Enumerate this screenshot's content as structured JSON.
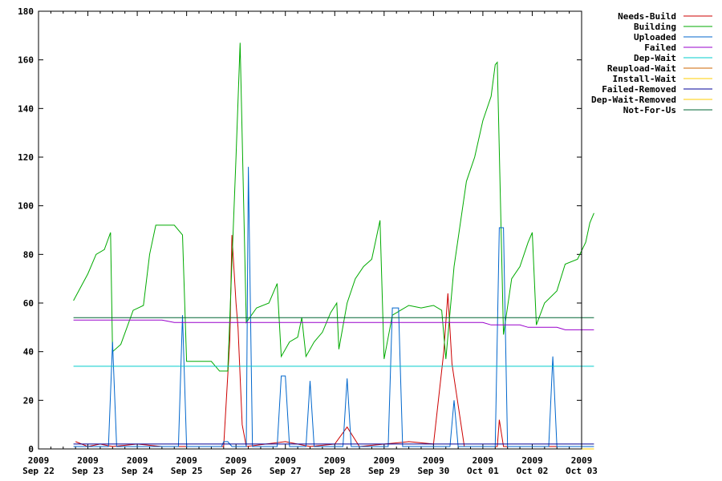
{
  "chart_data": {
    "type": "line",
    "xlim": [
      "2009-09-22",
      "2009-10-03"
    ],
    "ylim": [
      0,
      180
    ],
    "yticks": [
      0,
      20,
      40,
      60,
      80,
      100,
      120,
      140,
      160,
      180
    ],
    "xticks": [
      {
        "date": "2009-09-22",
        "year": "2009",
        "label": "Sep 22"
      },
      {
        "date": "2009-09-23",
        "year": "2009",
        "label": "Sep 23"
      },
      {
        "date": "2009-09-24",
        "year": "2009",
        "label": "Sep 24"
      },
      {
        "date": "2009-09-25",
        "year": "2009",
        "label": "Sep 25"
      },
      {
        "date": "2009-09-26",
        "year": "2009",
        "label": "Sep 26"
      },
      {
        "date": "2009-09-27",
        "year": "2009",
        "label": "Sep 27"
      },
      {
        "date": "2009-09-28",
        "year": "2009",
        "label": "Sep 28"
      },
      {
        "date": "2009-09-29",
        "year": "2009",
        "label": "Sep 29"
      },
      {
        "date": "2009-09-30",
        "year": "2009",
        "label": "Sep 30"
      },
      {
        "date": "2009-10-01",
        "year": "2009",
        "label": "Oct 01"
      },
      {
        "date": "2009-10-02",
        "year": "2009",
        "label": "Oct 02"
      },
      {
        "date": "2009-10-03",
        "year": "2009",
        "label": "Oct 03"
      }
    ],
    "legend_position": "top-right, outside plot",
    "grid": false,
    "series": [
      {
        "name": "Needs-Build",
        "color": "#cc0000",
        "points": [
          [
            "2009-09-22 18:00",
            3
          ],
          [
            "2009-09-23 00:00",
            1
          ],
          [
            "2009-09-23 06:00",
            2
          ],
          [
            "2009-09-23 12:00",
            1
          ],
          [
            "2009-09-24 00:00",
            2
          ],
          [
            "2009-09-24 12:00",
            1
          ],
          [
            "2009-09-25 18:00",
            1
          ],
          [
            "2009-09-25 21:00",
            45
          ],
          [
            "2009-09-25 22:00",
            88
          ],
          [
            "2009-09-26 00:00",
            60
          ],
          [
            "2009-09-26 01:00",
            50
          ],
          [
            "2009-09-26 03:00",
            10
          ],
          [
            "2009-09-26 05:00",
            1
          ],
          [
            "2009-09-27 00:00",
            3
          ],
          [
            "2009-09-27 12:00",
            1
          ],
          [
            "2009-09-28 00:00",
            2
          ],
          [
            "2009-09-28 06:00",
            9
          ],
          [
            "2009-09-28 12:00",
            1
          ],
          [
            "2009-09-29 12:00",
            3
          ],
          [
            "2009-09-30 00:00",
            2
          ],
          [
            "2009-09-30 05:00",
            40
          ],
          [
            "2009-09-30 07:00",
            64
          ],
          [
            "2009-09-30 09:00",
            35
          ],
          [
            "2009-09-30 12:00",
            18
          ],
          [
            "2009-09-30 15:00",
            1
          ],
          [
            "2009-10-01 00:00",
            1
          ],
          [
            "2009-10-01 07:00",
            1
          ],
          [
            "2009-10-01 08:00",
            12
          ],
          [
            "2009-10-01 10:00",
            1
          ],
          [
            "2009-10-02 00:00",
            1
          ],
          [
            "2009-10-02 18:00",
            1
          ]
        ]
      },
      {
        "name": "Building",
        "color": "#00aa00",
        "points": [
          [
            "2009-09-22 17:00",
            61
          ],
          [
            "2009-09-23 00:00",
            72
          ],
          [
            "2009-09-23 04:00",
            80
          ],
          [
            "2009-09-23 08:00",
            82
          ],
          [
            "2009-09-23 11:00",
            89
          ],
          [
            "2009-09-23 12:00",
            40
          ],
          [
            "2009-09-23 16:00",
            43
          ],
          [
            "2009-09-23 22:00",
            57
          ],
          [
            "2009-09-24 03:00",
            59
          ],
          [
            "2009-09-24 06:00",
            80
          ],
          [
            "2009-09-24 09:00",
            92
          ],
          [
            "2009-09-24 18:00",
            92
          ],
          [
            "2009-09-24 22:00",
            88
          ],
          [
            "2009-09-25 00:00",
            36
          ],
          [
            "2009-09-25 12:00",
            36
          ],
          [
            "2009-09-25 16:00",
            32
          ],
          [
            "2009-09-25 20:00",
            32
          ],
          [
            "2009-09-26 00:00",
            120
          ],
          [
            "2009-09-26 02:00",
            167
          ],
          [
            "2009-09-26 05:00",
            52
          ],
          [
            "2009-09-26 10:00",
            58
          ],
          [
            "2009-09-26 16:00",
            60
          ],
          [
            "2009-09-26 20:00",
            68
          ],
          [
            "2009-09-26 22:00",
            38
          ],
          [
            "2009-09-27 02:00",
            44
          ],
          [
            "2009-09-27 06:00",
            46
          ],
          [
            "2009-09-27 08:00",
            54
          ],
          [
            "2009-09-27 10:00",
            38
          ],
          [
            "2009-09-27 14:00",
            44
          ],
          [
            "2009-09-27 18:00",
            48
          ],
          [
            "2009-09-27 22:00",
            56
          ],
          [
            "2009-09-28 01:00",
            60
          ],
          [
            "2009-09-28 02:00",
            41
          ],
          [
            "2009-09-28 06:00",
            60
          ],
          [
            "2009-09-28 10:00",
            70
          ],
          [
            "2009-09-28 14:00",
            75
          ],
          [
            "2009-09-28 18:00",
            78
          ],
          [
            "2009-09-28 22:00",
            94
          ],
          [
            "2009-09-29 00:00",
            37
          ],
          [
            "2009-09-29 04:00",
            55
          ],
          [
            "2009-09-29 08:00",
            57
          ],
          [
            "2009-09-29 12:00",
            59
          ],
          [
            "2009-09-29 18:00",
            58
          ],
          [
            "2009-09-30 00:00",
            59
          ],
          [
            "2009-09-30 04:00",
            57
          ],
          [
            "2009-09-30 06:00",
            37
          ],
          [
            "2009-09-30 10:00",
            75
          ],
          [
            "2009-09-30 16:00",
            110
          ],
          [
            "2009-09-30 20:00",
            120
          ],
          [
            "2009-10-01 00:00",
            135
          ],
          [
            "2009-10-01 04:00",
            145
          ],
          [
            "2009-10-01 06:00",
            158
          ],
          [
            "2009-10-01 07:00",
            159
          ],
          [
            "2009-10-01 10:00",
            47
          ],
          [
            "2009-10-01 14:00",
            70
          ],
          [
            "2009-10-01 18:00",
            75
          ],
          [
            "2009-10-01 22:00",
            85
          ],
          [
            "2009-10-02 00:00",
            89
          ],
          [
            "2009-10-02 02:00",
            51
          ],
          [
            "2009-10-02 06:00",
            60
          ],
          [
            "2009-10-02 12:00",
            65
          ],
          [
            "2009-10-02 16:00",
            76
          ],
          [
            "2009-10-02 22:00",
            78
          ],
          [
            "2009-10-03 02:00",
            85
          ],
          [
            "2009-10-03 04:00",
            93
          ],
          [
            "2009-10-03 06:00",
            97
          ]
        ]
      },
      {
        "name": "Uploaded",
        "color": "#0066cc",
        "points": [
          [
            "2009-09-22 17:00",
            1
          ],
          [
            "2009-09-23 10:00",
            1
          ],
          [
            "2009-09-23 12:00",
            44
          ],
          [
            "2009-09-23 14:00",
            1
          ],
          [
            "2009-09-24 20:00",
            1
          ],
          [
            "2009-09-24 22:00",
            55
          ],
          [
            "2009-09-25 00:00",
            1
          ],
          [
            "2009-09-25 17:00",
            1
          ],
          [
            "2009-09-25 18:00",
            3
          ],
          [
            "2009-09-25 20:00",
            3
          ],
          [
            "2009-09-25 22:00",
            1
          ],
          [
            "2009-09-26 05:00",
            1
          ],
          [
            "2009-09-26 06:00",
            116
          ],
          [
            "2009-09-26 08:00",
            1
          ],
          [
            "2009-09-26 20:00",
            1
          ],
          [
            "2009-09-26 22:00",
            30
          ],
          [
            "2009-09-27 00:00",
            30
          ],
          [
            "2009-09-27 02:00",
            1
          ],
          [
            "2009-09-27 10:00",
            1
          ],
          [
            "2009-09-27 12:00",
            28
          ],
          [
            "2009-09-27 14:00",
            1
          ],
          [
            "2009-09-28 04:00",
            1
          ],
          [
            "2009-09-28 06:00",
            29
          ],
          [
            "2009-09-28 08:00",
            1
          ],
          [
            "2009-09-29 02:00",
            1
          ],
          [
            "2009-09-29 04:00",
            58
          ],
          [
            "2009-09-29 07:00",
            58
          ],
          [
            "2009-09-29 09:00",
            1
          ],
          [
            "2009-09-30 08:00",
            1
          ],
          [
            "2009-09-30 10:00",
            20
          ],
          [
            "2009-09-30 12:00",
            1
          ],
          [
            "2009-10-01 06:00",
            1
          ],
          [
            "2009-10-01 08:00",
            91
          ],
          [
            "2009-10-01 10:00",
            91
          ],
          [
            "2009-10-01 12:00",
            1
          ],
          [
            "2009-10-02 08:00",
            1
          ],
          [
            "2009-10-02 10:00",
            38
          ],
          [
            "2009-10-02 12:00",
            1
          ],
          [
            "2009-10-03 06:00",
            1
          ]
        ]
      },
      {
        "name": "Failed",
        "color": "#9900cc",
        "points": [
          [
            "2009-09-22 17:00",
            53
          ],
          [
            "2009-09-24 12:00",
            53
          ],
          [
            "2009-09-24 18:00",
            52
          ],
          [
            "2009-10-01 00:00",
            52
          ],
          [
            "2009-10-01 04:00",
            51
          ],
          [
            "2009-10-01 18:00",
            51
          ],
          [
            "2009-10-01 22:00",
            50
          ],
          [
            "2009-10-02 12:00",
            50
          ],
          [
            "2009-10-02 16:00",
            49
          ],
          [
            "2009-10-03 06:00",
            49
          ]
        ]
      },
      {
        "name": "Dep-Wait",
        "color": "#00cccc",
        "points": [
          [
            "2009-09-22 17:00",
            34
          ],
          [
            "2009-10-03 06:00",
            34
          ]
        ]
      },
      {
        "name": "Reupload-Wait",
        "color": "#cc6600",
        "points": [
          [
            "2009-09-22 17:00",
            0
          ],
          [
            "2009-10-03 06:00",
            0
          ]
        ]
      },
      {
        "name": "Install-Wait",
        "color": "#ffcc00",
        "points": [
          [
            "2009-09-22 17:00",
            0
          ],
          [
            "2009-10-03 06:00",
            0
          ]
        ]
      },
      {
        "name": "Failed-Removed",
        "color": "#000099",
        "points": [
          [
            "2009-09-22 17:00",
            2
          ],
          [
            "2009-10-03 06:00",
            2
          ]
        ]
      },
      {
        "name": "Dep-Wait-Removed",
        "color": "#ffcc00",
        "points": [
          [
            "2009-09-22 17:00",
            0
          ],
          [
            "2009-10-03 06:00",
            0
          ]
        ]
      },
      {
        "name": "Not-For-Us",
        "color": "#006633",
        "points": [
          [
            "2009-09-22 17:00",
            54
          ],
          [
            "2009-10-03 06:00",
            54
          ]
        ]
      }
    ]
  }
}
